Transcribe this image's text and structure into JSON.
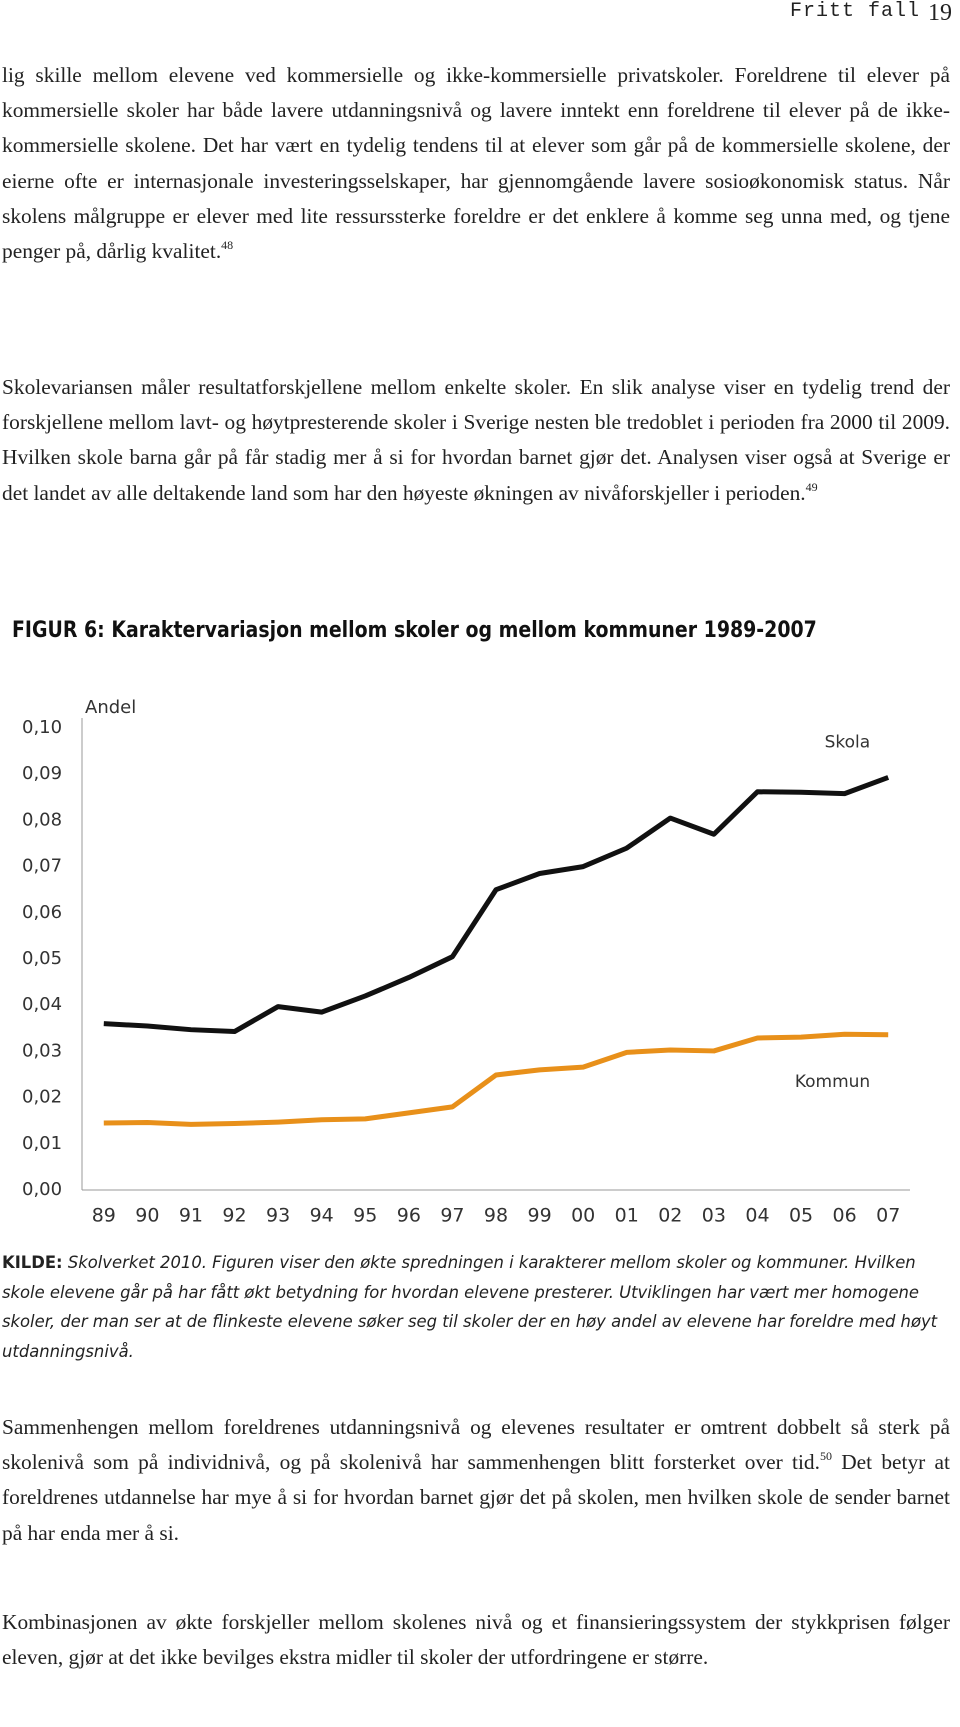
{
  "header": {
    "title": "Fritt fall",
    "page": "19"
  },
  "paragraphs": [
    [
      "lig skille mellom elevene ved kommersielle og ikke-kommersielle privatskoler. Foreldrene til elever på kommersielle skoler har både lavere utdanningsnivå og lavere inntekt enn foreldrene til elever på de ikke-kommersielle skolene. Det har vært en tydelig tendens til at elever som går på de kommersielle skolene, der eierne ofte er internasjonale investeringsselskaper, har gjennomgående lavere sosioøkonomisk status. Når skolens målgruppe er elever med lite ressurssterke foreldre er det enklere å komme seg unna med, og tjene penger på, dårlig kvalitet.",
      "48"
    ],
    [
      "Skolevariansen måler resultatforskjellene mellom enkelte skoler. En slik analyse viser en tydelig trend der forskjellene mellom lavt- og høytpresterende skoler i Sverige nesten ble tredoblet i perioden fra 2000 til 2009. Hvilken skole barna går på får stadig mer å si for hvordan barnet gjør det. Analysen viser også at Sverige er det landet av alle deltakende land som har den høyeste økningen av nivåforskjeller i perioden.",
      "49"
    ],
    [
      "Sammenhengen mellom foreldrenes utdanningsnivå og elevenes resultater er omtrent dobbelt så sterk på skolenivå som på individnivå, og på skolenivå har sammenhengen blitt forsterket over tid.",
      "50",
      " Det betyr at foreldrenes utdannelse har mye å si for hvordan barnet gjør det på skolen, men hvilken skole de sender barnet på har enda mer å si."
    ],
    [
      "Kombinasjonen av økte forskjeller mellom skolenes nivå og et finansieringssystem der stykkprisen følger eleven, gjør at det ikke bevilges ekstra midler til skoler der utfordringene er større."
    ]
  ],
  "figure_title": "FIGUR 6: Karaktervariasjon mellom skoler og mellom kommuner 1989-2007",
  "chart_data": {
    "type": "line",
    "y_label": "Andel",
    "categories": [
      "89",
      "90",
      "91",
      "92",
      "93",
      "94",
      "95",
      "96",
      "97",
      "98",
      "99",
      "00",
      "01",
      "02",
      "03",
      "04",
      "05",
      "06",
      "07"
    ],
    "series": [
      {
        "name": "Skola",
        "color": "#111111",
        "values": [
          0.036,
          0.0355,
          0.0347,
          0.0343,
          0.0397,
          0.0385,
          0.042,
          0.046,
          0.0505,
          0.065,
          0.0685,
          0.07,
          0.074,
          0.0805,
          0.077,
          0.0862,
          0.0861,
          0.0858,
          0.0893
        ]
      },
      {
        "name": "Kommun",
        "color": "#e8901a",
        "values": [
          0.0145,
          0.0146,
          0.0142,
          0.0144,
          0.0147,
          0.0152,
          0.0154,
          0.0167,
          0.018,
          0.0249,
          0.026,
          0.0266,
          0.0298,
          0.0303,
          0.0301,
          0.0329,
          0.0331,
          0.0337,
          0.0336
        ]
      }
    ],
    "ylim": [
      0,
      0.1
    ],
    "yticks": [
      {
        "value": 0,
        "label": "0,00"
      },
      {
        "value": 0.01,
        "label": "0,01"
      },
      {
        "value": 0.02,
        "label": "0,02"
      },
      {
        "value": 0.03,
        "label": "0,03"
      },
      {
        "value": 0.04,
        "label": "0,04"
      },
      {
        "value": 0.05,
        "label": "0,05"
      },
      {
        "value": 0.06,
        "label": "0,06"
      },
      {
        "value": 0.07,
        "label": "0,07"
      },
      {
        "value": 0.08,
        "label": "0,08"
      },
      {
        "value": 0.09,
        "label": "0,09"
      },
      {
        "value": 0.1,
        "label": "0,10"
      }
    ],
    "grid": false
  },
  "caption": {
    "label": "KILDE:",
    "text": "Skolverket 2010. Figuren viser den økte spredningen i karakterer mellom skoler og kommuner. Hvilken skole elevene går på har fått økt betydning for hvordan elevene presterer. Utviklingen har vært mer homogene skoler, der man ser at de flinkeste elevene søker seg til skoler der en høy andel av elevene har foreldre med høyt utdanningsnivå."
  }
}
